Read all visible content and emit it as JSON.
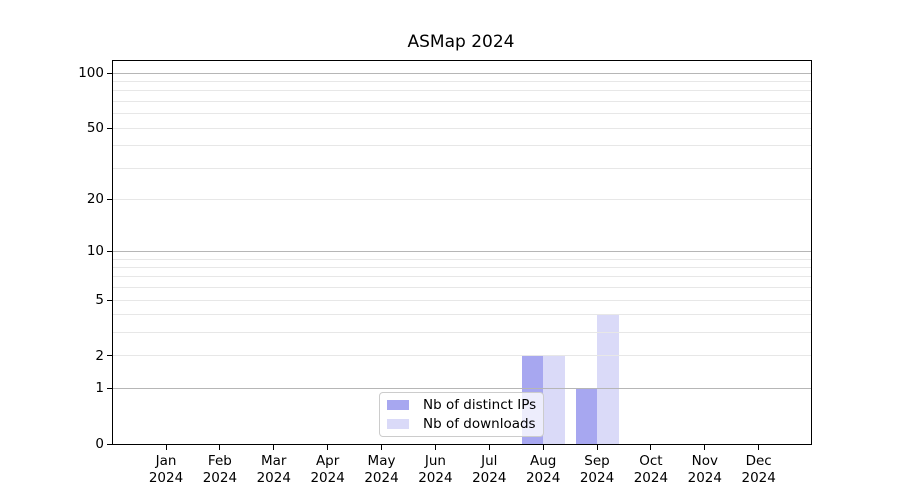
{
  "title": "ASMap 2024",
  "chart_data": {
    "type": "bar",
    "title": "ASMap 2024",
    "categories": [
      "Jan 2024",
      "Feb 2024",
      "Mar 2024",
      "Apr 2024",
      "May 2024",
      "Jun 2024",
      "Jul 2024",
      "Aug 2024",
      "Sep 2024",
      "Oct 2024",
      "Nov 2024",
      "Dec 2024"
    ],
    "series": [
      {
        "name": "Nb of distinct IPs",
        "color": "#a7a7f0",
        "values": [
          0,
          0,
          0,
          0,
          0,
          0,
          0,
          2,
          1,
          0,
          0,
          0
        ]
      },
      {
        "name": "Nb of downloads",
        "color": "#dadaf8",
        "values": [
          0,
          0,
          0,
          0,
          0,
          0,
          0,
          2,
          4,
          0,
          0,
          0
        ]
      }
    ],
    "xlabel": "",
    "ylabel": "",
    "yscale": "log1p",
    "ylim": [
      0,
      117
    ],
    "y_ticks": [
      100,
      50,
      20,
      10,
      5,
      2,
      1,
      0
    ],
    "y_major_gridlines": [
      100,
      10,
      1
    ],
    "y_minor_gridlines": [
      90,
      80,
      70,
      60,
      50,
      40,
      30,
      20,
      9,
      8,
      7,
      6,
      5,
      4,
      3,
      2
    ],
    "grid": true,
    "legend_position": "lower center",
    "colors": {
      "major_grid": "#b6b6b6",
      "minor_grid": "#e7e7e7",
      "spine": "#000000",
      "background": "#ffffff"
    }
  }
}
